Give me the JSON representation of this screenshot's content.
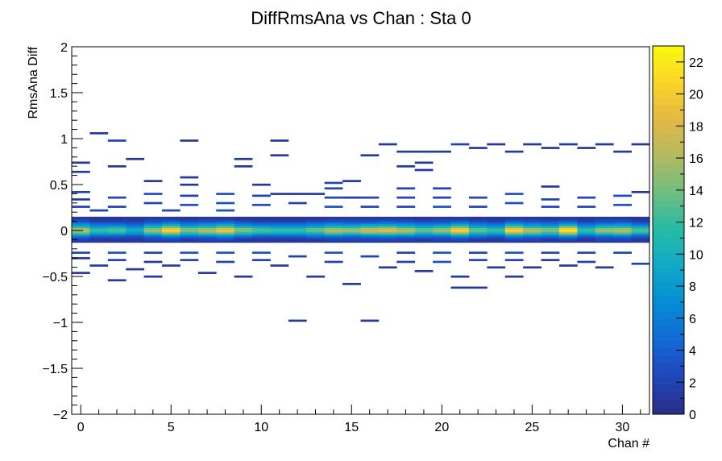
{
  "chart_data": {
    "type": "heatmap",
    "title": "DiffRmsAna vs Chan : Sta 0",
    "xlabel": "Chan #",
    "ylabel": "RmsAna Diff",
    "xlim": [
      -0.5,
      31.5
    ],
    "ylim": [
      -2,
      2
    ],
    "x_ticks": [
      0,
      5,
      10,
      15,
      20,
      25,
      30
    ],
    "y_ticks": [
      -2,
      -1.5,
      -1,
      -0.5,
      0,
      0.5,
      1,
      1.5,
      2
    ],
    "x_tick_labels": [
      "0",
      "5",
      "10",
      "15",
      "20",
      "25",
      "30"
    ],
    "y_tick_labels": [
      "−2",
      "−1.5",
      "−1",
      "−0.5",
      "0",
      "0.5",
      "1",
      "1.5",
      "2"
    ],
    "y_bin_width": 0.02,
    "z_range": [
      0,
      23
    ],
    "colorbar_ticks": [
      0,
      2,
      4,
      6,
      8,
      10,
      12,
      14,
      16,
      18,
      20,
      22
    ],
    "colorbar_tick_labels": [
      "0",
      "2",
      "4",
      "6",
      "8",
      "10",
      "12",
      "14",
      "16",
      "18",
      "20",
      "22"
    ],
    "grid": false,
    "core_profile": {
      "y_centers": [
        -0.12,
        -0.1,
        -0.08,
        -0.06,
        -0.04,
        -0.02,
        0.0,
        0.02,
        0.04,
        0.06,
        0.08,
        0.1,
        0.12,
        0.14
      ],
      "weights": [
        1,
        2,
        4,
        7,
        12,
        17,
        21,
        19,
        14,
        10,
        7,
        4,
        2,
        1
      ]
    },
    "channel_peak_counts": [
      17,
      12,
      13,
      10,
      16,
      21,
      15,
      17,
      20,
      15,
      13,
      12,
      12,
      14,
      17,
      16,
      18,
      19,
      17,
      14,
      16,
      21,
      14,
      12,
      21,
      17,
      15,
      22,
      12,
      16,
      17,
      13
    ],
    "outlier_cells": [
      {
        "x": 0,
        "y": 0.74,
        "z": 1
      },
      {
        "x": 0,
        "y": 0.64,
        "z": 1
      },
      {
        "x": 0,
        "y": 0.42,
        "z": 2
      },
      {
        "x": 0,
        "y": 0.34,
        "z": 1
      },
      {
        "x": 0,
        "y": 0.26,
        "z": 2
      },
      {
        "x": 0,
        "y": -0.24,
        "z": 2
      },
      {
        "x": 0,
        "y": -0.3,
        "z": 1
      },
      {
        "x": 0,
        "y": -0.46,
        "z": 1
      },
      {
        "x": 1,
        "y": 1.06,
        "z": 1
      },
      {
        "x": 1,
        "y": 0.22,
        "z": 2
      },
      {
        "x": 1,
        "y": -0.38,
        "z": 1
      },
      {
        "x": 2,
        "y": 0.98,
        "z": 2
      },
      {
        "x": 2,
        "y": 0.7,
        "z": 1
      },
      {
        "x": 2,
        "y": 0.36,
        "z": 2
      },
      {
        "x": 2,
        "y": 0.26,
        "z": 2
      },
      {
        "x": 2,
        "y": -0.24,
        "z": 3
      },
      {
        "x": 2,
        "y": -0.32,
        "z": 2
      },
      {
        "x": 2,
        "y": -0.54,
        "z": 1
      },
      {
        "x": 3,
        "y": 0.78,
        "z": 1
      },
      {
        "x": 3,
        "y": -0.42,
        "z": 1
      },
      {
        "x": 4,
        "y": 0.54,
        "z": 1
      },
      {
        "x": 4,
        "y": 0.4,
        "z": 3
      },
      {
        "x": 4,
        "y": 0.3,
        "z": 2
      },
      {
        "x": 4,
        "y": -0.24,
        "z": 2
      },
      {
        "x": 4,
        "y": -0.34,
        "z": 1
      },
      {
        "x": 4,
        "y": -0.5,
        "z": 1
      },
      {
        "x": 5,
        "y": 0.22,
        "z": 2
      },
      {
        "x": 5,
        "y": -0.38,
        "z": 1
      },
      {
        "x": 6,
        "y": 0.98,
        "z": 1
      },
      {
        "x": 6,
        "y": 0.58,
        "z": 1
      },
      {
        "x": 6,
        "y": 0.5,
        "z": 1
      },
      {
        "x": 6,
        "y": 0.38,
        "z": 2
      },
      {
        "x": 6,
        "y": 0.28,
        "z": 3
      },
      {
        "x": 6,
        "y": -0.24,
        "z": 3
      },
      {
        "x": 6,
        "y": -0.32,
        "z": 2
      },
      {
        "x": 7,
        "y": -0.46,
        "z": 1
      },
      {
        "x": 8,
        "y": 0.4,
        "z": 3
      },
      {
        "x": 8,
        "y": 0.3,
        "z": 3
      },
      {
        "x": 8,
        "y": 0.22,
        "z": 3
      },
      {
        "x": 8,
        "y": -0.24,
        "z": 3
      },
      {
        "x": 8,
        "y": -0.34,
        "z": 2
      },
      {
        "x": 9,
        "y": 0.78,
        "z": 1
      },
      {
        "x": 9,
        "y": 0.7,
        "z": 1
      },
      {
        "x": 9,
        "y": -0.5,
        "z": 1
      },
      {
        "x": 10,
        "y": 0.5,
        "z": 1
      },
      {
        "x": 10,
        "y": 0.38,
        "z": 2
      },
      {
        "x": 10,
        "y": 0.28,
        "z": 3
      },
      {
        "x": 10,
        "y": -0.24,
        "z": 3
      },
      {
        "x": 10,
        "y": -0.32,
        "z": 2
      },
      {
        "x": 11,
        "y": 0.98,
        "z": 1
      },
      {
        "x": 11,
        "y": 0.82,
        "z": 1
      },
      {
        "x": 11,
        "y": 0.4,
        "z": 1
      },
      {
        "x": 11,
        "y": -0.38,
        "z": 1
      },
      {
        "x": 12,
        "y": 0.4,
        "z": 1
      },
      {
        "x": 12,
        "y": 0.3,
        "z": 2
      },
      {
        "x": 12,
        "y": -0.28,
        "z": 2
      },
      {
        "x": 12,
        "y": -0.98,
        "z": 1
      },
      {
        "x": 13,
        "y": 0.4,
        "z": 1
      },
      {
        "x": 13,
        "y": -0.5,
        "z": 1
      },
      {
        "x": 14,
        "y": 0.52,
        "z": 2
      },
      {
        "x": 14,
        "y": 0.46,
        "z": 2
      },
      {
        "x": 14,
        "y": 0.36,
        "z": 2
      },
      {
        "x": 14,
        "y": 0.26,
        "z": 3
      },
      {
        "x": 14,
        "y": -0.24,
        "z": 3
      },
      {
        "x": 14,
        "y": -0.34,
        "z": 2
      },
      {
        "x": 15,
        "y": 0.54,
        "z": 1
      },
      {
        "x": 15,
        "y": 0.36,
        "z": 1
      },
      {
        "x": 15,
        "y": -0.58,
        "z": 1
      },
      {
        "x": 16,
        "y": 0.82,
        "z": 1
      },
      {
        "x": 16,
        "y": 0.36,
        "z": 2
      },
      {
        "x": 16,
        "y": 0.26,
        "z": 2
      },
      {
        "x": 16,
        "y": -0.28,
        "z": 2
      },
      {
        "x": 16,
        "y": -0.98,
        "z": 1
      },
      {
        "x": 17,
        "y": 0.94,
        "z": 1
      },
      {
        "x": 17,
        "y": -0.4,
        "z": 1
      },
      {
        "x": 18,
        "y": 0.86,
        "z": 1
      },
      {
        "x": 18,
        "y": 0.7,
        "z": 1
      },
      {
        "x": 18,
        "y": 0.46,
        "z": 2
      },
      {
        "x": 18,
        "y": 0.36,
        "z": 2
      },
      {
        "x": 18,
        "y": 0.26,
        "z": 2
      },
      {
        "x": 18,
        "y": -0.24,
        "z": 2
      },
      {
        "x": 18,
        "y": -0.34,
        "z": 2
      },
      {
        "x": 19,
        "y": 0.86,
        "z": 1
      },
      {
        "x": 19,
        "y": 0.74,
        "z": 1
      },
      {
        "x": 19,
        "y": 0.66,
        "z": 1
      },
      {
        "x": 19,
        "y": -0.44,
        "z": 1
      },
      {
        "x": 20,
        "y": 0.86,
        "z": 1
      },
      {
        "x": 20,
        "y": 0.46,
        "z": 2
      },
      {
        "x": 20,
        "y": 0.36,
        "z": 2
      },
      {
        "x": 20,
        "y": 0.26,
        "z": 3
      },
      {
        "x": 20,
        "y": -0.24,
        "z": 3
      },
      {
        "x": 20,
        "y": -0.34,
        "z": 3
      },
      {
        "x": 21,
        "y": 0.94,
        "z": 2
      },
      {
        "x": 21,
        "y": -0.5,
        "z": 1
      },
      {
        "x": 21,
        "y": -0.62,
        "z": 1
      },
      {
        "x": 22,
        "y": 0.9,
        "z": 1
      },
      {
        "x": 22,
        "y": 0.36,
        "z": 2
      },
      {
        "x": 22,
        "y": 0.26,
        "z": 2
      },
      {
        "x": 22,
        "y": -0.24,
        "z": 2
      },
      {
        "x": 22,
        "y": -0.32,
        "z": 2
      },
      {
        "x": 22,
        "y": -0.62,
        "z": 1
      },
      {
        "x": 23,
        "y": 0.94,
        "z": 1
      },
      {
        "x": 23,
        "y": -0.4,
        "z": 1
      },
      {
        "x": 24,
        "y": 0.86,
        "z": 1
      },
      {
        "x": 24,
        "y": 0.4,
        "z": 3
      },
      {
        "x": 24,
        "y": 0.3,
        "z": 3
      },
      {
        "x": 24,
        "y": -0.24,
        "z": 3
      },
      {
        "x": 24,
        "y": -0.32,
        "z": 2
      },
      {
        "x": 24,
        "y": -0.5,
        "z": 1
      },
      {
        "x": 25,
        "y": 0.94,
        "z": 1
      },
      {
        "x": 25,
        "y": -0.4,
        "z": 1
      },
      {
        "x": 26,
        "y": 0.9,
        "z": 1
      },
      {
        "x": 26,
        "y": 0.48,
        "z": 1
      },
      {
        "x": 26,
        "y": 0.34,
        "z": 2
      },
      {
        "x": 26,
        "y": 0.26,
        "z": 2
      },
      {
        "x": 26,
        "y": -0.24,
        "z": 2
      },
      {
        "x": 26,
        "y": -0.32,
        "z": 1
      },
      {
        "x": 27,
        "y": 0.94,
        "z": 1
      },
      {
        "x": 27,
        "y": -0.38,
        "z": 1
      },
      {
        "x": 28,
        "y": 0.9,
        "z": 1
      },
      {
        "x": 28,
        "y": 0.36,
        "z": 2
      },
      {
        "x": 28,
        "y": 0.26,
        "z": 2
      },
      {
        "x": 28,
        "y": -0.24,
        "z": 2
      },
      {
        "x": 28,
        "y": -0.34,
        "z": 2
      },
      {
        "x": 29,
        "y": 0.94,
        "z": 1
      },
      {
        "x": 29,
        "y": -0.4,
        "z": 1
      },
      {
        "x": 30,
        "y": 0.86,
        "z": 1
      },
      {
        "x": 30,
        "y": 0.38,
        "z": 3
      },
      {
        "x": 30,
        "y": 0.28,
        "z": 3
      },
      {
        "x": 30,
        "y": -0.24,
        "z": 2
      },
      {
        "x": 31,
        "y": 0.94,
        "z": 1
      },
      {
        "x": 31,
        "y": 0.42,
        "z": 1
      },
      {
        "x": 31,
        "y": -0.36,
        "z": 2
      }
    ]
  }
}
